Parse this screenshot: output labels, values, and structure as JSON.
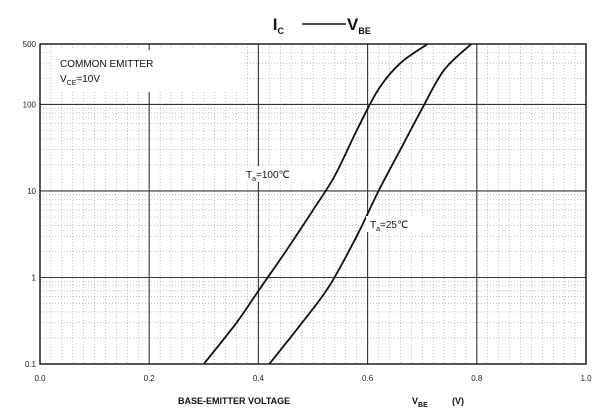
{
  "chart_data": {
    "type": "line",
    "title": {
      "left_main": "I",
      "left_sub": "C",
      "right_main": "V",
      "right_sub": "BE"
    },
    "annotation": {
      "line1": "COMMON EMITTER",
      "line2_main": "V",
      "line2_sub": "CE",
      "line2_rest": "=10V"
    },
    "xlabel": {
      "text": "BASE-EMITTER VOLTAGE",
      "sym_main": "V",
      "sym_sub": "BE",
      "unit": "(V)"
    },
    "x_scale": "linear",
    "y_scale": "log",
    "xlim": [
      0.0,
      1.0
    ],
    "ylim": [
      0.1,
      500
    ],
    "x_ticks": [
      "0.0",
      "0.2",
      "0.4",
      "0.6",
      "0.8",
      "1.0"
    ],
    "y_ticks": [
      "0.1",
      "1",
      "10",
      "100",
      "500"
    ],
    "grid": true,
    "series": [
      {
        "name_main": "T",
        "name_sub": "a",
        "name_rest": "=100℃",
        "x": [
          0.3,
          0.36,
          0.4,
          0.45,
          0.5,
          0.54,
          0.58,
          0.62,
          0.66,
          0.71
        ],
        "y": [
          0.1,
          0.3,
          0.7,
          2.0,
          6.0,
          15,
          50,
          150,
          300,
          500
        ]
      },
      {
        "name_main": "T",
        "name_sub": "a",
        "name_rest": "=25℃",
        "x": [
          0.42,
          0.48,
          0.53,
          0.58,
          0.62,
          0.66,
          0.7,
          0.74,
          0.79
        ],
        "y": [
          0.1,
          0.3,
          0.8,
          3.0,
          10,
          30,
          90,
          250,
          500
        ]
      }
    ]
  }
}
